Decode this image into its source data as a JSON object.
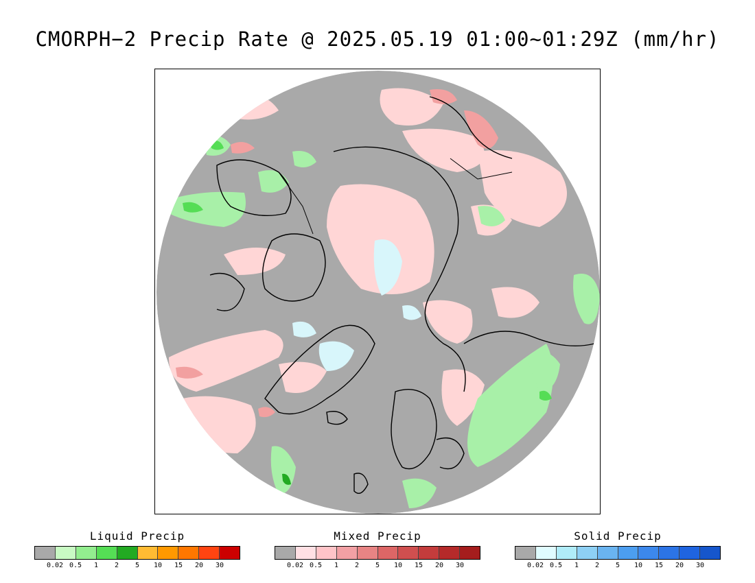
{
  "title": "CMORPH−2 Precip Rate @ 2025.05.19 01:00~01:29Z (mm/hr)",
  "map": {
    "background_color": "#a9a9a9",
    "colors": {
      "no_precip": "#a9a9a9",
      "liquid_light": "#a8f0a8",
      "liquid_medium": "#55dd55",
      "liquid_dark": "#22aa22",
      "mixed_light": "#ffd6d6",
      "mixed_medium": "#f2a0a0",
      "mixed_dark": "#d86060",
      "solid_light": "#d8f6fb",
      "coastline": "#000000"
    }
  },
  "legends": [
    {
      "title": "Liquid Precip",
      "colors": [
        "#a9a9a9",
        "#c9fac4",
        "#93ee8f",
        "#55de55",
        "#22aa22",
        "#ffbb33",
        "#ff9900",
        "#ff7700",
        "#ff4411",
        "#cc0000"
      ],
      "ticks": [
        "0.02",
        "0.5",
        "1",
        "2",
        "5",
        "10",
        "15",
        "20",
        "30"
      ]
    },
    {
      "title": "Mixed Precip",
      "colors": [
        "#a9a9a9",
        "#ffe0e4",
        "#ffc4c8",
        "#f2a0a4",
        "#e88484",
        "#dd6666",
        "#d04f4f",
        "#c43c3c",
        "#b52a2a",
        "#a51d1d"
      ],
      "ticks": [
        "0.02",
        "0.5",
        "1",
        "2",
        "5",
        "10",
        "15",
        "20",
        "30"
      ]
    },
    {
      "title": "Solid Precip",
      "colors": [
        "#a9a9a9",
        "#e0fcff",
        "#b0ecf8",
        "#8ed0f4",
        "#6ab4f0",
        "#4c9ef0",
        "#3c88ec",
        "#2c74e6",
        "#1f64e0",
        "#1656cc"
      ],
      "ticks": [
        "0.02",
        "0.5",
        "1",
        "2",
        "5",
        "10",
        "15",
        "20",
        "30"
      ]
    }
  ]
}
